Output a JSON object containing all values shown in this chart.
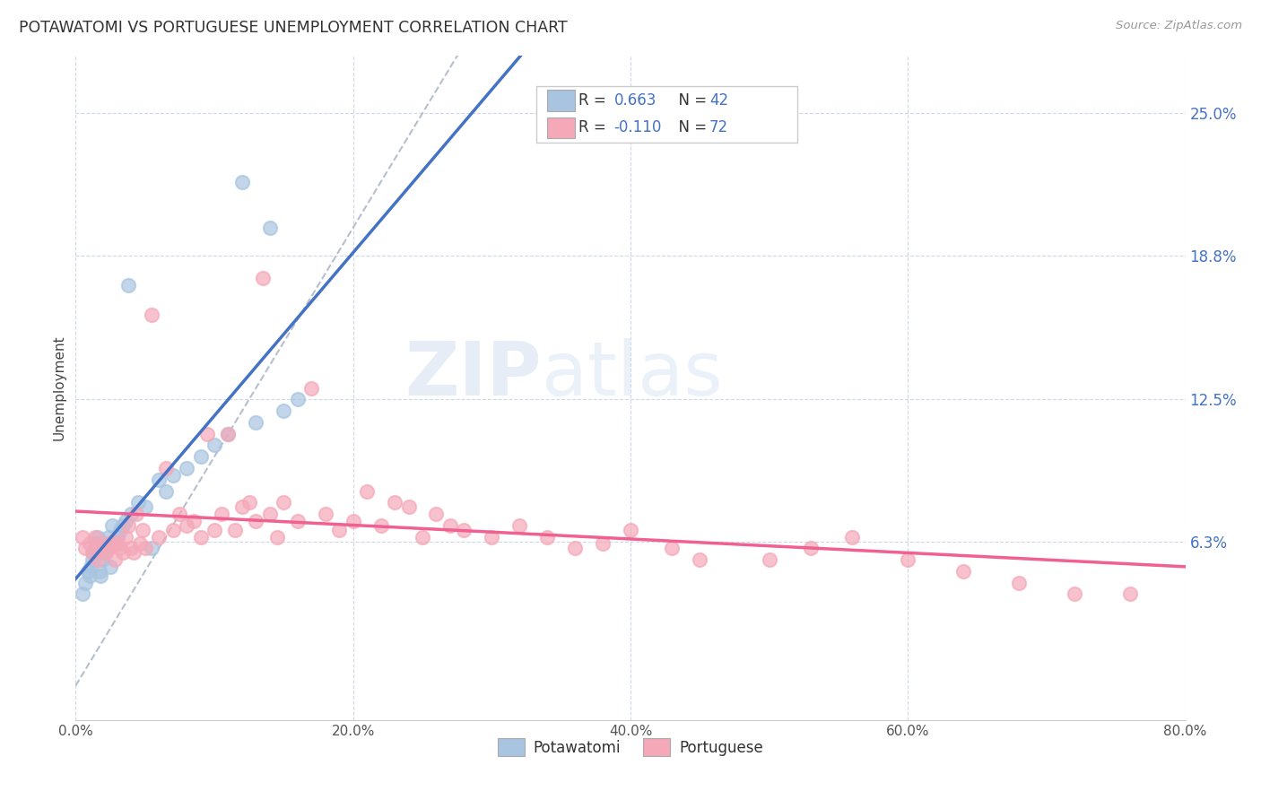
{
  "title": "POTAWATOMI VS PORTUGUESE UNEMPLOYMENT CORRELATION CHART",
  "source": "Source: ZipAtlas.com",
  "ylabel": "Unemployment",
  "ytick_labels": [
    "6.3%",
    "12.5%",
    "18.8%",
    "25.0%"
  ],
  "ytick_values": [
    0.063,
    0.125,
    0.188,
    0.25
  ],
  "xlim": [
    0.0,
    0.8
  ],
  "ylim": [
    -0.015,
    0.275
  ],
  "watermark": "ZIPAtlas",
  "potawatomi_color": "#a8c4e0",
  "portuguese_color": "#f4a8b8",
  "potawatomi_line_color": "#4472c4",
  "portuguese_line_color": "#f06090",
  "diagonal_line_color": "#b0b8c8",
  "background_color": "#ffffff",
  "grid_color": "#d0d8e8",
  "legend_r1_label": "R = ",
  "legend_r1_val": "0.663",
  "legend_r1_n_label": "  N = ",
  "legend_r1_n_val": "42",
  "legend_r2_label": "R = ",
  "legend_r2_val": "-0.110",
  "legend_r2_n_label": "  N = ",
  "legend_r2_n_val": "72",
  "colored_text_color": "#4472c4",
  "potawatomi_x": [
    0.005,
    0.007,
    0.009,
    0.01,
    0.011,
    0.012,
    0.013,
    0.014,
    0.015,
    0.016,
    0.017,
    0.018,
    0.019,
    0.02,
    0.021,
    0.022,
    0.023,
    0.024,
    0.025,
    0.026,
    0.028,
    0.03,
    0.032,
    0.034,
    0.036,
    0.038,
    0.04,
    0.045,
    0.05,
    0.055,
    0.06,
    0.065,
    0.07,
    0.08,
    0.09,
    0.1,
    0.11,
    0.12,
    0.13,
    0.14,
    0.15,
    0.16
  ],
  "potawatomi_y": [
    0.04,
    0.045,
    0.05,
    0.048,
    0.052,
    0.055,
    0.058,
    0.06,
    0.062,
    0.065,
    0.05,
    0.048,
    0.055,
    0.06,
    0.058,
    0.062,
    0.06,
    0.065,
    0.052,
    0.07,
    0.062,
    0.065,
    0.068,
    0.07,
    0.072,
    0.175,
    0.075,
    0.08,
    0.078,
    0.06,
    0.09,
    0.085,
    0.092,
    0.095,
    0.1,
    0.105,
    0.11,
    0.22,
    0.115,
    0.2,
    0.12,
    0.125
  ],
  "portuguese_x": [
    0.005,
    0.007,
    0.01,
    0.012,
    0.014,
    0.016,
    0.018,
    0.02,
    0.022,
    0.024,
    0.026,
    0.028,
    0.03,
    0.032,
    0.034,
    0.036,
    0.038,
    0.04,
    0.042,
    0.044,
    0.046,
    0.048,
    0.05,
    0.055,
    0.06,
    0.065,
    0.07,
    0.075,
    0.08,
    0.085,
    0.09,
    0.095,
    0.1,
    0.105,
    0.11,
    0.115,
    0.12,
    0.125,
    0.13,
    0.135,
    0.14,
    0.145,
    0.15,
    0.16,
    0.17,
    0.18,
    0.19,
    0.2,
    0.21,
    0.22,
    0.23,
    0.24,
    0.25,
    0.26,
    0.27,
    0.28,
    0.3,
    0.32,
    0.34,
    0.36,
    0.38,
    0.4,
    0.43,
    0.45,
    0.5,
    0.53,
    0.56,
    0.6,
    0.64,
    0.68,
    0.72,
    0.76
  ],
  "portuguese_y": [
    0.065,
    0.06,
    0.062,
    0.058,
    0.065,
    0.055,
    0.06,
    0.062,
    0.058,
    0.06,
    0.063,
    0.055,
    0.062,
    0.06,
    0.058,
    0.065,
    0.07,
    0.06,
    0.058,
    0.075,
    0.062,
    0.068,
    0.06,
    0.162,
    0.065,
    0.095,
    0.068,
    0.075,
    0.07,
    0.072,
    0.065,
    0.11,
    0.068,
    0.075,
    0.11,
    0.068,
    0.078,
    0.08,
    0.072,
    0.178,
    0.075,
    0.065,
    0.08,
    0.072,
    0.13,
    0.075,
    0.068,
    0.072,
    0.085,
    0.07,
    0.08,
    0.078,
    0.065,
    0.075,
    0.07,
    0.068,
    0.065,
    0.07,
    0.065,
    0.06,
    0.062,
    0.068,
    0.06,
    0.055,
    0.055,
    0.06,
    0.065,
    0.055,
    0.05,
    0.045,
    0.04,
    0.04
  ]
}
